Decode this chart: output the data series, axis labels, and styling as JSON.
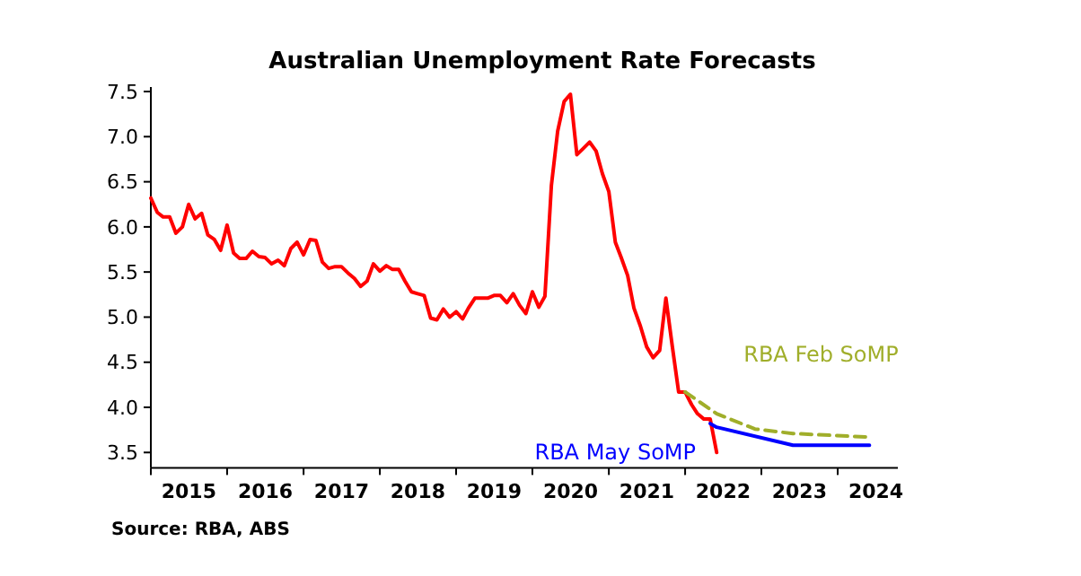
{
  "chart_data": {
    "type": "line",
    "title": "Australian Unemployment Rate Forecasts",
    "annotations": [
      "Source: RBA, ABS"
    ],
    "xlim": [
      "2015-01-01",
      "2024-10-15"
    ],
    "xticks": [
      {
        "value": "2015-01-01",
        "label": null
      },
      {
        "value": "2015-07-02",
        "label": "2015"
      },
      {
        "value": "2016-01-01",
        "label": null
      },
      {
        "value": "2016-07-02",
        "label": "2016"
      },
      {
        "value": "2017-01-01",
        "label": null
      },
      {
        "value": "2017-07-02",
        "label": "2017"
      },
      {
        "value": "2018-01-01",
        "label": null
      },
      {
        "value": "2018-07-02",
        "label": "2018"
      },
      {
        "value": "2019-01-01",
        "label": null
      },
      {
        "value": "2019-07-02",
        "label": "2019"
      },
      {
        "value": "2020-01-01",
        "label": null
      },
      {
        "value": "2020-07-02",
        "label": "2020"
      },
      {
        "value": "2021-01-01",
        "label": null
      },
      {
        "value": "2021-07-02",
        "label": "2021"
      },
      {
        "value": "2022-01-01",
        "label": null
      },
      {
        "value": "2022-07-02",
        "label": "2022"
      },
      {
        "value": "2023-01-01",
        "label": null
      },
      {
        "value": "2023-07-02",
        "label": "2023"
      },
      {
        "value": "2024-01-01",
        "label": null
      },
      {
        "value": "2024-07-02",
        "label": "2024"
      }
    ],
    "ylim": [
      3.33,
      7.55
    ],
    "yticks": [
      3.5,
      {
        "value": 4,
        "label": "4.0"
      },
      4.5,
      {
        "value": 5,
        "label": "5.0"
      },
      5.5,
      {
        "value": 6,
        "label": "6.0"
      },
      6.5,
      {
        "value": 7,
        "label": "7.0"
      },
      7.5
    ],
    "grid": false,
    "marker": "none",
    "series": [
      {
        "color": "#ff0000",
        "line_style": "solid",
        "x": [
          "2015-01",
          "2015-02",
          "2015-03",
          "2015-04",
          "2015-05",
          "2015-06",
          "2015-07",
          "2015-08",
          "2015-09",
          "2015-10",
          "2015-11",
          "2015-12",
          "2016-01",
          "2016-02",
          "2016-03",
          "2016-04",
          "2016-05",
          "2016-06",
          "2016-07",
          "2016-08",
          "2016-09",
          "2016-10",
          "2016-11",
          "2016-12",
          "2017-01",
          "2017-02",
          "2017-03",
          "2017-04",
          "2017-05",
          "2017-06",
          "2017-07",
          "2017-08",
          "2017-09",
          "2017-10",
          "2017-11",
          "2017-12",
          "2018-01",
          "2018-02",
          "2018-03",
          "2018-04",
          "2018-05",
          "2018-06",
          "2018-07",
          "2018-08",
          "2018-09",
          "2018-10",
          "2018-11",
          "2018-12",
          "2019-01",
          "2019-02",
          "2019-03",
          "2019-04",
          "2019-05",
          "2019-06",
          "2019-07",
          "2019-08",
          "2019-09",
          "2019-10",
          "2019-11",
          "2019-12",
          "2020-01",
          "2020-02",
          "2020-03",
          "2020-04",
          "2020-05",
          "2020-06",
          "2020-07",
          "2020-08",
          "2020-09",
          "2020-10",
          "2020-11",
          "2020-12",
          "2021-01",
          "2021-02",
          "2021-03",
          "2021-04",
          "2021-05",
          "2021-06",
          "2021-07",
          "2021-08",
          "2021-09",
          "2021-10",
          "2021-11",
          "2021-12",
          "2022-01",
          "2022-02",
          "2022-03",
          "2022-04",
          "2022-05",
          "2022-06"
        ],
        "values": [
          6.32,
          6.16,
          6.11,
          6.11,
          5.93,
          6.0,
          6.25,
          6.09,
          6.15,
          5.91,
          5.86,
          5.74,
          6.02,
          5.71,
          5.65,
          5.65,
          5.73,
          5.67,
          5.66,
          5.59,
          5.63,
          5.57,
          5.76,
          5.83,
          5.69,
          5.86,
          5.85,
          5.61,
          5.54,
          5.56,
          5.56,
          5.49,
          5.43,
          5.34,
          5.4,
          5.59,
          5.51,
          5.57,
          5.53,
          5.53,
          5.4,
          5.28,
          5.26,
          5.24,
          4.99,
          4.97,
          5.09,
          5.0,
          5.06,
          4.98,
          5.1,
          5.21,
          5.21,
          5.21,
          5.24,
          5.24,
          5.16,
          5.26,
          5.13,
          5.04,
          5.28,
          5.11,
          5.23,
          6.46,
          7.06,
          7.39,
          7.47,
          6.8,
          6.87,
          6.94,
          6.84,
          6.59,
          6.39,
          5.83,
          5.66,
          5.46,
          5.1,
          4.9,
          4.67,
          4.55,
          4.63,
          5.21,
          4.67,
          4.17,
          4.17,
          4.03,
          3.93,
          3.87,
          3.87,
          3.5
        ]
      },
      {
        "name": "RBA Feb SoMP",
        "color": "#a0ae2a",
        "line_style": "dashed",
        "x": [
          "2022-01",
          "2022-06",
          "2022-12",
          "2023-06",
          "2024-06"
        ],
        "values": [
          4.17,
          3.93,
          3.76,
          3.71,
          3.67
        ]
      },
      {
        "name": "RBA May SoMP",
        "color": "#0000ff",
        "line_style": "solid",
        "x": [
          "2022-05",
          "2022-06",
          "2023-06",
          "2024-06"
        ],
        "values": [
          3.82,
          3.78,
          3.58,
          3.58
        ]
      }
    ]
  }
}
